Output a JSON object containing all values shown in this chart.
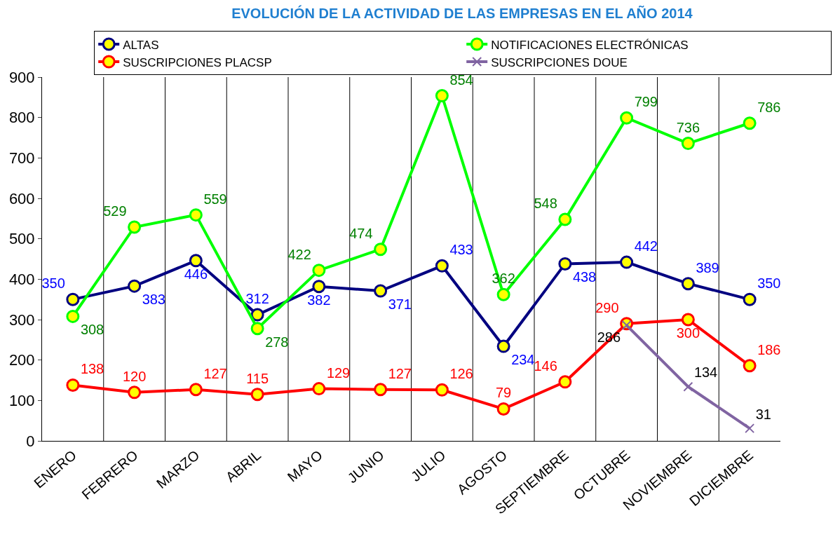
{
  "chart_data": {
    "type": "line",
    "title": "EVOLUCIÓN DE LA ACTIVIDAD DE LAS EMPRESAS EN EL AÑO 2014",
    "categories": [
      "ENERO",
      "FEBRERO",
      "MARZO",
      "ABRIL",
      "MAYO",
      "JUNIO",
      "JULIO",
      "AGOSTO",
      "SEPTIEMBRE",
      "OCTUBRE",
      "NOVIEMBRE",
      "DICIEMBRE"
    ],
    "series": [
      {
        "name": "ALTAS",
        "color": "#000080",
        "marker": "circle",
        "values": [
          350,
          383,
          446,
          312,
          382,
          371,
          433,
          234,
          438,
          442,
          389,
          350
        ]
      },
      {
        "name": "NOTIFICACIONES ELECTRÓNICAS",
        "color": "#00ff00",
        "marker": "circle",
        "values": [
          308,
          529,
          559,
          278,
          422,
          474,
          854,
          362,
          548,
          799,
          736,
          786
        ]
      },
      {
        "name": "SUSCRIPCIONES PLACSP",
        "color": "#ff0000",
        "marker": "circle",
        "values": [
          138,
          120,
          127,
          115,
          129,
          127,
          126,
          79,
          146,
          290,
          300,
          186
        ]
      },
      {
        "name": "SUSCRIPCIONES DOUE",
        "color": "#8064a2",
        "marker": "cross",
        "values": [
          null,
          null,
          null,
          null,
          null,
          null,
          null,
          null,
          null,
          286,
          134,
          31
        ]
      }
    ],
    "ylim": [
      0,
      900
    ],
    "yticks": [
      0,
      100,
      200,
      300,
      400,
      500,
      600,
      700,
      800,
      900
    ],
    "grid": "x",
    "legend": "top",
    "data_labels": true,
    "line_style": "solid"
  }
}
